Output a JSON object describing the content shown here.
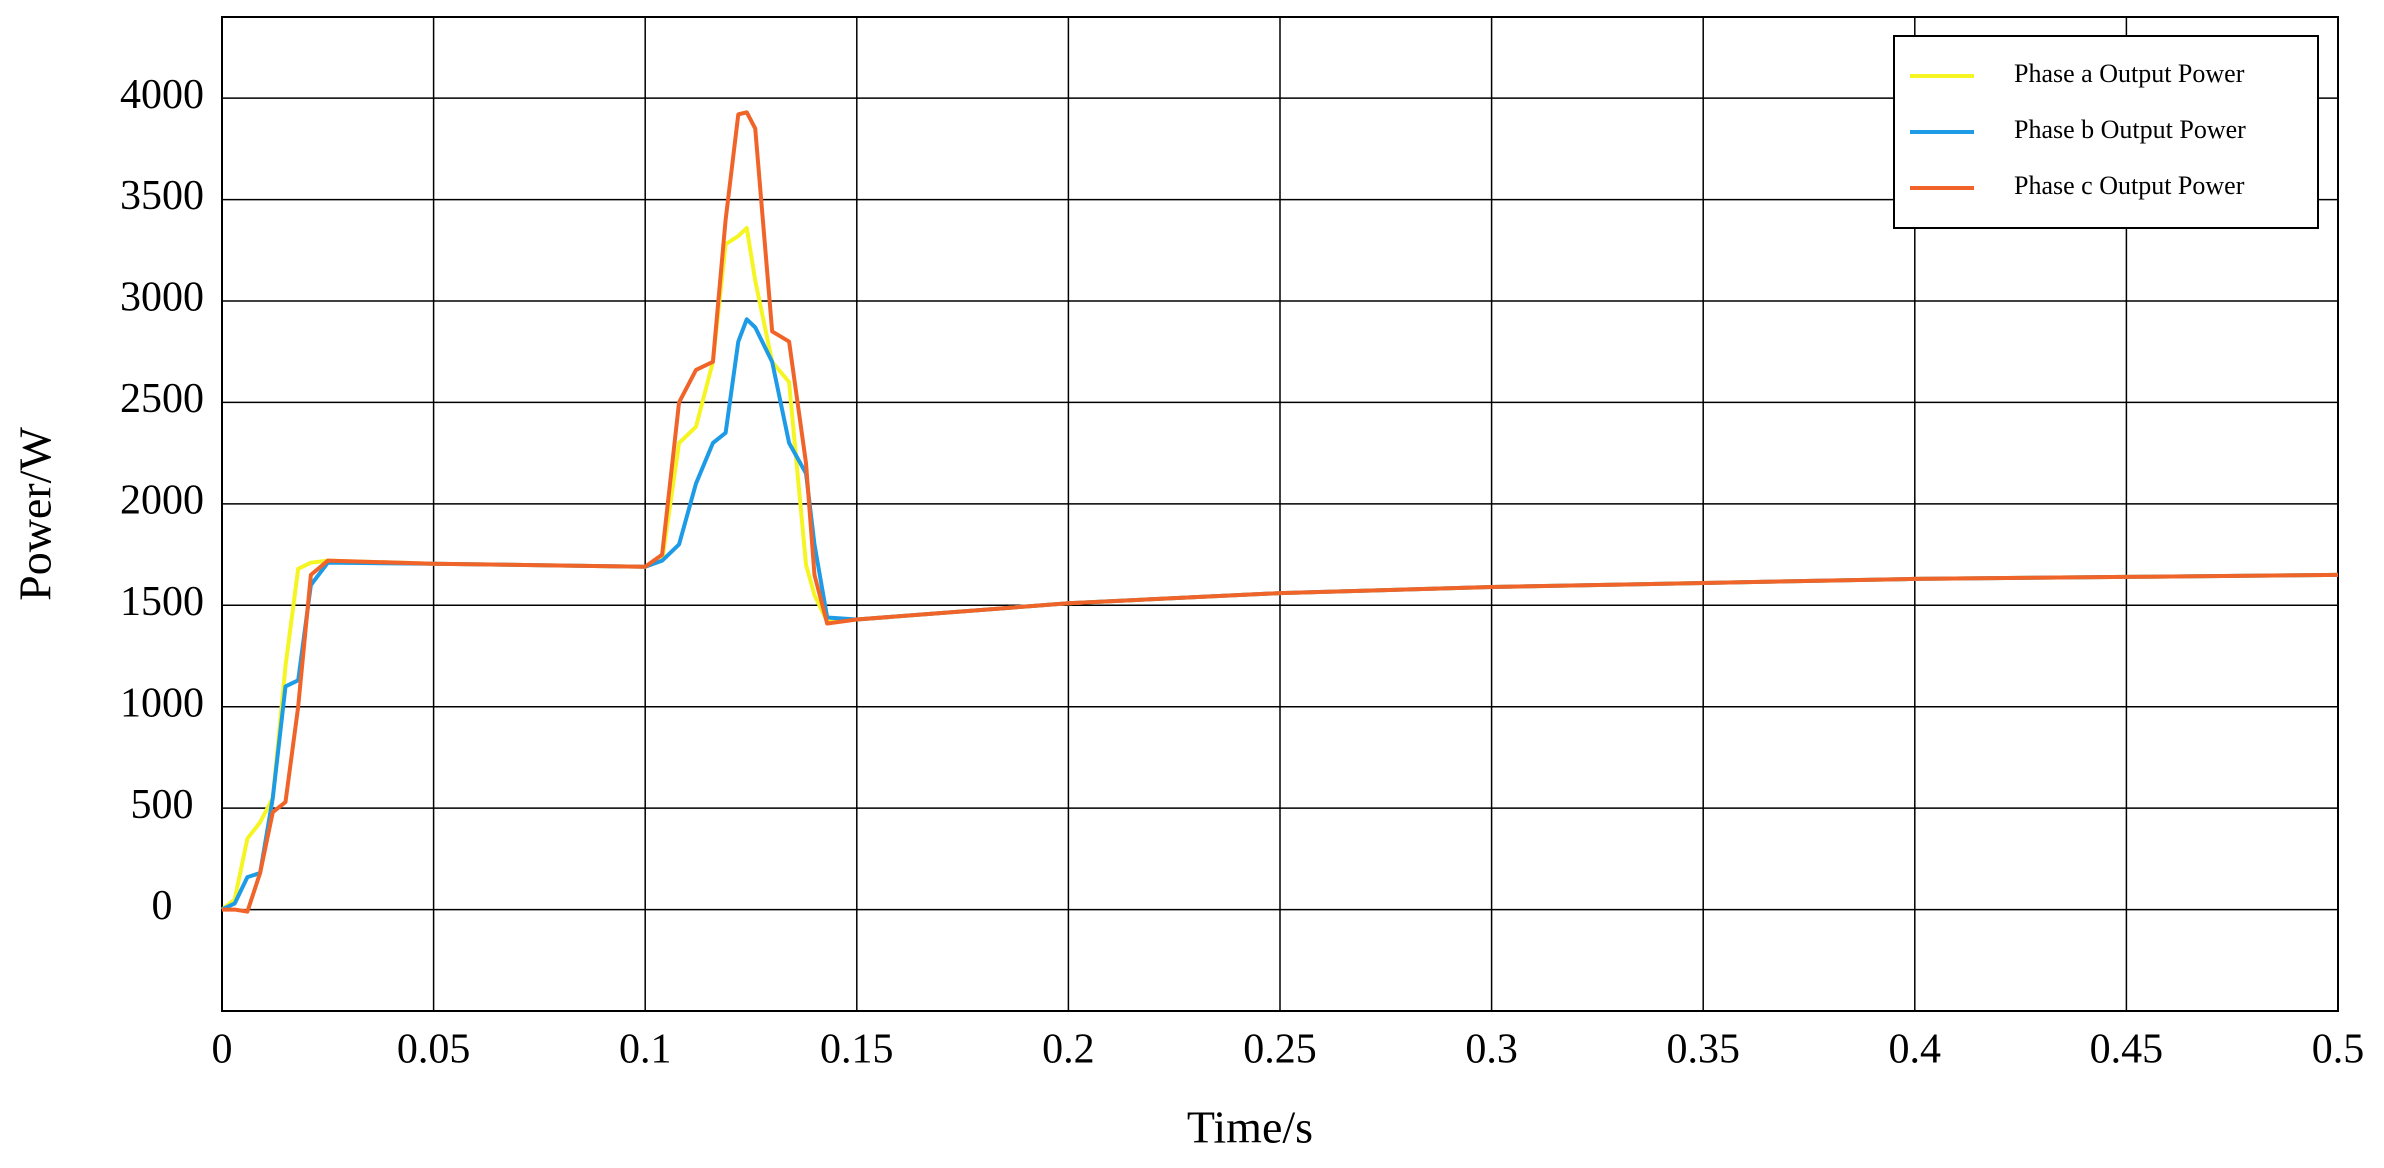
{
  "chart_data": {
    "type": "line",
    "xlabel": "Time/s",
    "ylabel": "Power/W",
    "x": [
      0,
      0.003,
      0.006,
      0.009,
      0.012,
      0.015,
      0.018,
      0.021,
      0.025,
      0.05,
      0.1,
      0.104,
      0.108,
      0.112,
      0.116,
      0.119,
      0.122,
      0.124,
      0.126,
      0.13,
      0.134,
      0.138,
      0.14,
      0.143,
      0.15,
      0.2,
      0.25,
      0.3,
      0.35,
      0.4,
      0.45,
      0.5
    ],
    "series": [
      {
        "name": "Phase a Output Power",
        "color": "#f5f523",
        "values": [
          0,
          50,
          350,
          430,
          550,
          1200,
          1680,
          1710,
          1720,
          1705,
          1690,
          1720,
          2300,
          2380,
          2700,
          3280,
          3320,
          3360,
          3100,
          2700,
          2600,
          1700,
          1550,
          1420,
          1430,
          1510,
          1560,
          1590,
          1610,
          1630,
          1640,
          1650
        ]
      },
      {
        "name": "Phase b Output Power",
        "color": "#1e9be6",
        "values": [
          0,
          30,
          160,
          180,
          550,
          1100,
          1130,
          1600,
          1710,
          1705,
          1690,
          1720,
          1800,
          2100,
          2300,
          2350,
          2800,
          2910,
          2870,
          2700,
          2300,
          2150,
          1800,
          1440,
          1430,
          1510,
          1560,
          1590,
          1610,
          1630,
          1640,
          1650
        ]
      },
      {
        "name": "Phase c Output Power",
        "color": "#f0642a",
        "values": [
          0,
          0,
          -10,
          180,
          480,
          530,
          1000,
          1650,
          1720,
          1705,
          1690,
          1750,
          2500,
          2660,
          2700,
          3400,
          3920,
          3930,
          3850,
          2850,
          2800,
          2200,
          1650,
          1410,
          1430,
          1510,
          1560,
          1590,
          1610,
          1630,
          1640,
          1650
        ]
      }
    ],
    "xlim": [
      0,
      0.5
    ],
    "xticks": [
      0,
      0.05,
      0.1,
      0.15,
      0.2,
      0.25,
      0.3,
      0.35,
      0.4,
      0.45,
      0.5
    ],
    "ylim": [
      -500,
      4400
    ],
    "yticks": [
      0,
      500,
      1000,
      1500,
      2000,
      2500,
      3000,
      3500,
      4000
    ],
    "grid": true,
    "legend": "upper-right"
  }
}
